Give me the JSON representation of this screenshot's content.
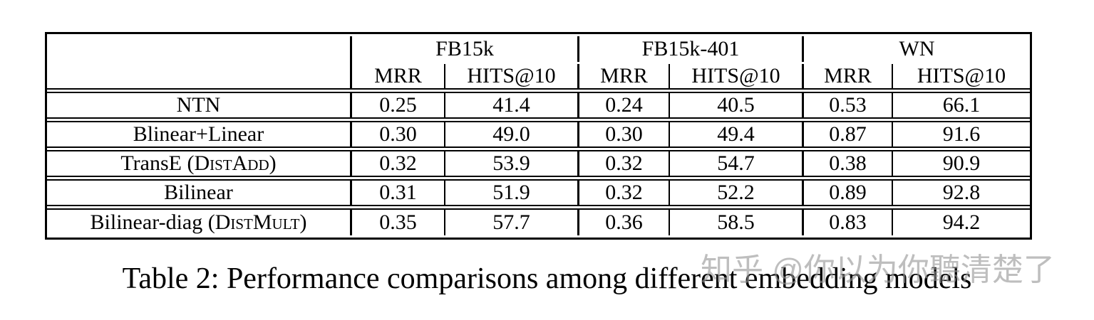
{
  "table": {
    "col_groups": [
      {
        "label": "FB15k"
      },
      {
        "label": "FB15k-401"
      },
      {
        "label": "WN"
      }
    ],
    "sub_headers": [
      "MRR",
      "HITS@10",
      "MRR",
      "HITS@10",
      "MRR",
      "HITS@10"
    ],
    "rows": [
      {
        "label_parts": {
          "pre": "NTN",
          "sc": "",
          "post": ""
        },
        "values": [
          "0.25",
          "41.4",
          "0.24",
          "40.5",
          "0.53",
          "66.1"
        ],
        "bold": []
      },
      {
        "label_parts": {
          "pre": "Blinear+Linear",
          "sc": "",
          "post": ""
        },
        "values": [
          "0.30",
          "49.0",
          "0.30",
          "49.4",
          "0.87",
          "91.6"
        ],
        "bold": []
      },
      {
        "label_parts": {
          "pre": "TransE (",
          "sc": "DistAdd",
          "post": ")"
        },
        "values": [
          "0.32",
          "53.9",
          "0.32",
          "54.7",
          "0.38",
          "90.9"
        ],
        "bold": []
      },
      {
        "label_parts": {
          "pre": "Bilinear",
          "sc": "",
          "post": ""
        },
        "values": [
          "0.31",
          "51.9",
          "0.32",
          "52.2",
          "0.89",
          "92.8"
        ],
        "bold": [
          4
        ]
      },
      {
        "label_parts": {
          "pre": "Bilinear-diag (",
          "sc": "DistMult",
          "post": ")"
        },
        "values": [
          "0.35",
          "57.7",
          "0.36",
          "58.5",
          "0.83",
          "94.2"
        ],
        "bold": [
          0,
          1,
          2,
          3,
          5
        ]
      }
    ]
  },
  "caption": "Table 2: Performance comparisons among different embedding models",
  "watermark": "知乎 @你以为你聽清楚了"
}
